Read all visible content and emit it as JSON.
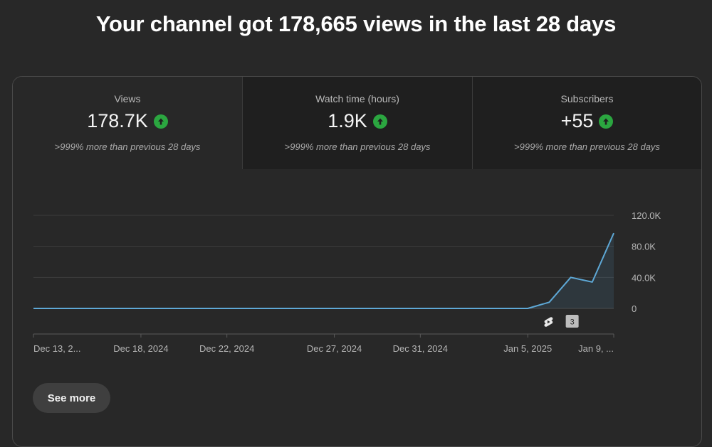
{
  "headline": "Your channel got 178,665 views in the last 28 days",
  "metrics": [
    {
      "label": "Views",
      "value": "178.7K",
      "compare": ">999% more than previous 28 days",
      "trend": "up",
      "selected": true
    },
    {
      "label": "Watch time (hours)",
      "value": "1.9K",
      "compare": ">999% more than previous 28 days",
      "trend": "up",
      "selected": false
    },
    {
      "label": "Subscribers",
      "value": "+55",
      "compare": ">999% more than previous 28 days",
      "trend": "up",
      "selected": false
    }
  ],
  "colors": {
    "line": "#5ea8d6",
    "trend_up": "#2ba640"
  },
  "chart_data": {
    "type": "area",
    "x": [
      "Dec 13",
      "Dec 14",
      "Dec 15",
      "Dec 16",
      "Dec 17",
      "Dec 18",
      "Dec 19",
      "Dec 20",
      "Dec 21",
      "Dec 22",
      "Dec 23",
      "Dec 24",
      "Dec 25",
      "Dec 26",
      "Dec 27",
      "Dec 28",
      "Dec 29",
      "Dec 30",
      "Dec 31",
      "Jan 1",
      "Jan 2",
      "Jan 3",
      "Jan 4",
      "Jan 5",
      "Jan 6",
      "Jan 7",
      "Jan 8",
      "Jan 9"
    ],
    "series": [
      {
        "values": [
          0,
          0,
          0,
          0,
          0,
          0,
          0,
          0,
          0,
          0,
          0,
          0,
          0,
          0,
          0,
          0,
          0,
          0,
          0,
          0,
          0,
          0,
          0,
          0,
          8000,
          40000,
          34000,
          97000
        ]
      }
    ],
    "ylim": [
      0,
      120000
    ],
    "yticks": [
      "120.0K",
      "80.0K",
      "40.0K",
      "0"
    ],
    "ytick_values": [
      120000,
      80000,
      40000,
      0
    ],
    "xticks": [
      {
        "label": "Dec 13, 2...",
        "index": 0
      },
      {
        "label": "Dec 18, 2024",
        "index": 5
      },
      {
        "label": "Dec 22, 2024",
        "index": 9
      },
      {
        "label": "Dec 27, 2024",
        "index": 14
      },
      {
        "label": "Dec 31, 2024",
        "index": 18
      },
      {
        "label": "Jan 5, 2025",
        "index": 23
      },
      {
        "label": "Jan 9, ...",
        "index": 27
      }
    ],
    "markers": [
      {
        "icon": "shorts-icon",
        "index": 24
      },
      {
        "badge": "3",
        "index": 25
      }
    ],
    "grid": true
  },
  "see_more_label": "See more"
}
